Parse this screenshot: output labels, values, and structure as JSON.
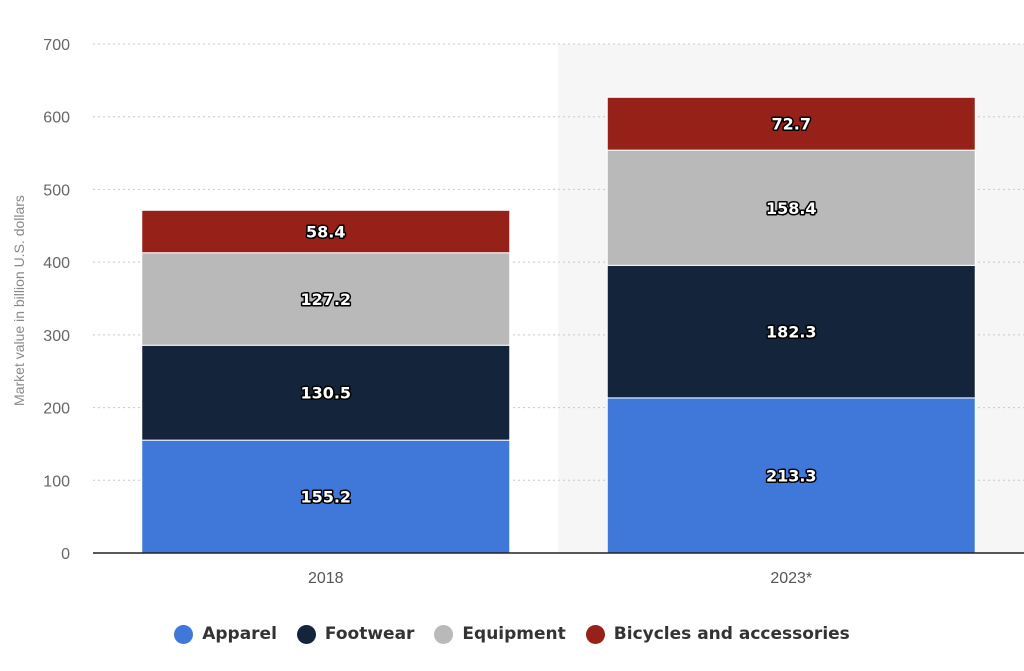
{
  "chart_data": {
    "type": "bar",
    "stacked": true,
    "categories": [
      "2018",
      "2023*"
    ],
    "series": [
      {
        "name": "Apparel",
        "color": "#3f78d8",
        "values": [
          155.2,
          213.3
        ]
      },
      {
        "name": "Footwear",
        "color": "#14243a",
        "values": [
          130.5,
          182.3
        ]
      },
      {
        "name": "Equipment",
        "color": "#b9b9b9",
        "values": [
          127.2,
          158.4
        ]
      },
      {
        "name": "Bicycles and accessories",
        "color": "#962118",
        "values": [
          58.4,
          72.7
        ]
      }
    ],
    "ylabel": "Market value in billion U.S. dollars",
    "ylim": [
      0,
      700
    ],
    "yticks": [
      0,
      100,
      200,
      300,
      400,
      500,
      600,
      700
    ],
    "grid": true,
    "legend_position": "bottom",
    "highlighted_category": "2023*"
  }
}
